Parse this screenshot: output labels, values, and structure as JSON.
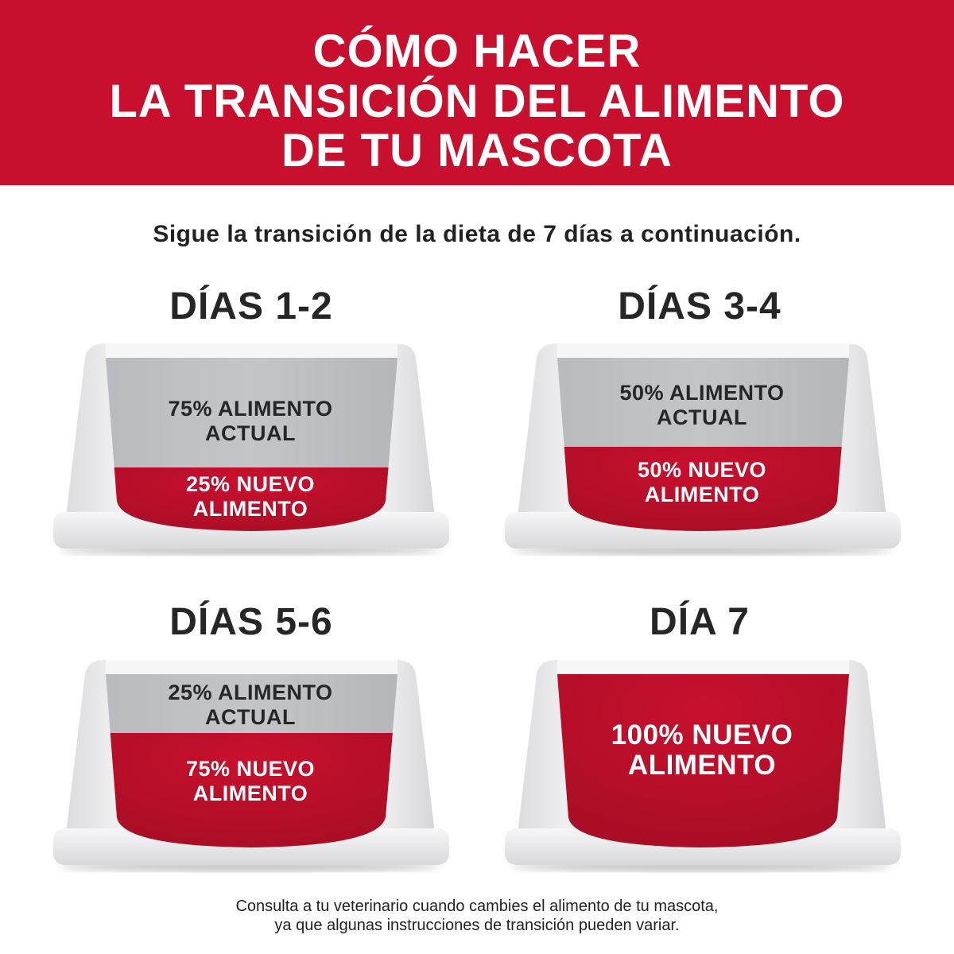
{
  "header": {
    "title_lines": [
      "CÓMO HACER",
      "LA TRANSICIÓN DEL ALIMENTO",
      "DE TU MASCOTA"
    ],
    "background_color": "#c8102e"
  },
  "subtitle": "Sigue la transición de la dieta de 7 días a continuación.",
  "stages": [
    {
      "heading": "DÍAS 1-2",
      "current_label_1": "75% ALIMENTO",
      "current_label_2": "ACTUAL",
      "new_label_1": "25% NUEVO",
      "new_label_2": "ALIMENTO",
      "new_percent": 25
    },
    {
      "heading": "DÍAS 3-4",
      "current_label_1": "50% ALIMENTO",
      "current_label_2": "ACTUAL",
      "new_label_1": "50% NUEVO",
      "new_label_2": "ALIMENTO",
      "new_percent": 50
    },
    {
      "heading": "DÍAS 5-6",
      "current_label_1": "25% ALIMENTO",
      "current_label_2": "ACTUAL",
      "new_label_1": "75% NUEVO",
      "new_label_2": "ALIMENTO",
      "new_percent": 75
    },
    {
      "heading": "DÍA 7",
      "new_label_1": "100% NUEVO",
      "new_label_2": "ALIMENTO",
      "new_percent": 100
    }
  ],
  "colors": {
    "new_food": "#c8102e",
    "current_food": "#c4c5c8",
    "bowl": "#e8e8ea"
  },
  "footer_lines": [
    "Consulta a tu veterinario cuando cambies el alimento de tu mascota,",
    "ya que algunas instrucciones de transición pueden variar."
  ]
}
